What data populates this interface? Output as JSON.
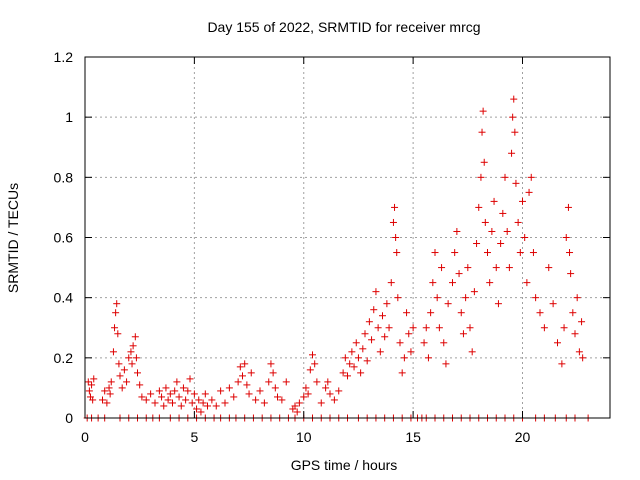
{
  "chart_data": {
    "type": "scatter",
    "title": "Day 155 of 2022, SRMTID for receiver mrcg",
    "xlabel": "GPS time / hours",
    "ylabel": "SRMTID / TECUs",
    "xlim": [
      0,
      24
    ],
    "ylim": [
      0,
      1.2
    ],
    "x_ticks": [
      0,
      5,
      10,
      15,
      20
    ],
    "x_tick_labels": [
      "0",
      "5",
      "10",
      "15",
      "20"
    ],
    "y_ticks": [
      0,
      0.2,
      0.4,
      0.6,
      0.8,
      1.0,
      1.2
    ],
    "y_tick_labels": [
      "0",
      "0.2",
      "0.4",
      "0.6",
      "0.8",
      "1",
      "1.2"
    ],
    "grid": true,
    "marker": "+",
    "marker_color": "#dd0000",
    "series": [
      {
        "name": "SRMTID",
        "points": [
          [
            0.15,
            0.12
          ],
          [
            0.2,
            0.09
          ],
          [
            0.25,
            0.07
          ],
          [
            0.3,
            0.11
          ],
          [
            0.35,
            0.06
          ],
          [
            0.4,
            0.13
          ],
          [
            0.8,
            0.06
          ],
          [
            0.9,
            0.09
          ],
          [
            1.0,
            0.05
          ],
          [
            1.1,
            0.1
          ],
          [
            1.15,
            0.08
          ],
          [
            1.2,
            0.12
          ],
          [
            1.3,
            0.22
          ],
          [
            1.35,
            0.3
          ],
          [
            1.4,
            0.35
          ],
          [
            1.45,
            0.38
          ],
          [
            1.5,
            0.28
          ],
          [
            1.55,
            0.18
          ],
          [
            1.6,
            0.14
          ],
          [
            1.7,
            0.1
          ],
          [
            1.8,
            0.16
          ],
          [
            1.9,
            0.12
          ],
          [
            2.0,
            0.2
          ],
          [
            2.1,
            0.22
          ],
          [
            2.15,
            0.18
          ],
          [
            2.2,
            0.24
          ],
          [
            2.3,
            0.27
          ],
          [
            2.35,
            0.2
          ],
          [
            2.4,
            0.15
          ],
          [
            2.5,
            0.11
          ],
          [
            2.6,
            0.07
          ],
          [
            2.8,
            0.06
          ],
          [
            3.0,
            0.08
          ],
          [
            3.2,
            0.05
          ],
          [
            3.4,
            0.09
          ],
          [
            3.5,
            0.07
          ],
          [
            3.6,
            0.04
          ],
          [
            3.7,
            0.1
          ],
          [
            3.8,
            0.06
          ],
          [
            3.9,
            0.08
          ],
          [
            4.0,
            0.05
          ],
          [
            4.1,
            0.09
          ],
          [
            4.2,
            0.12
          ],
          [
            4.3,
            0.07
          ],
          [
            4.4,
            0.04
          ],
          [
            4.5,
            0.1
          ],
          [
            4.6,
            0.06
          ],
          [
            4.7,
            0.09
          ],
          [
            4.8,
            0.13
          ],
          [
            4.9,
            0.05
          ],
          [
            5.0,
            0.08
          ],
          [
            5.1,
            0.03
          ],
          [
            5.2,
            0.06
          ],
          [
            5.3,
            0.02
          ],
          [
            5.4,
            0.05
          ],
          [
            5.5,
            0.08
          ],
          [
            5.6,
            0.04
          ],
          [
            5.8,
            0.06
          ],
          [
            6.0,
            0.04
          ],
          [
            6.2,
            0.09
          ],
          [
            6.4,
            0.05
          ],
          [
            6.6,
            0.1
          ],
          [
            6.8,
            0.07
          ],
          [
            7.0,
            0.12
          ],
          [
            7.1,
            0.17
          ],
          [
            7.2,
            0.14
          ],
          [
            7.3,
            0.18
          ],
          [
            7.4,
            0.11
          ],
          [
            7.5,
            0.08
          ],
          [
            7.6,
            0.15
          ],
          [
            7.8,
            0.06
          ],
          [
            8.0,
            0.09
          ],
          [
            8.2,
            0.05
          ],
          [
            8.4,
            0.12
          ],
          [
            8.5,
            0.18
          ],
          [
            8.6,
            0.15
          ],
          [
            8.7,
            0.1
          ],
          [
            8.8,
            0.07
          ],
          [
            9.0,
            0.06
          ],
          [
            9.2,
            0.12
          ],
          [
            9.5,
            0.03
          ],
          [
            9.6,
            0.04
          ],
          [
            9.7,
            0.02
          ],
          [
            9.8,
            0.05
          ],
          [
            10.0,
            0.07
          ],
          [
            10.1,
            0.1
          ],
          [
            10.2,
            0.08
          ],
          [
            10.3,
            0.16
          ],
          [
            10.4,
            0.21
          ],
          [
            10.5,
            0.18
          ],
          [
            10.6,
            0.12
          ],
          [
            10.8,
            0.05
          ],
          [
            11.0,
            0.1
          ],
          [
            11.1,
            0.12
          ],
          [
            11.2,
            0.08
          ],
          [
            11.4,
            0.06
          ],
          [
            11.6,
            0.09
          ],
          [
            11.8,
            0.15
          ],
          [
            11.9,
            0.2
          ],
          [
            12.0,
            0.14
          ],
          [
            12.1,
            0.18
          ],
          [
            12.2,
            0.22
          ],
          [
            12.3,
            0.17
          ],
          [
            12.4,
            0.25
          ],
          [
            12.5,
            0.2
          ],
          [
            12.6,
            0.15
          ],
          [
            12.7,
            0.23
          ],
          [
            12.8,
            0.28
          ],
          [
            12.9,
            0.19
          ],
          [
            13.0,
            0.32
          ],
          [
            13.1,
            0.26
          ],
          [
            13.2,
            0.36
          ],
          [
            13.3,
            0.42
          ],
          [
            13.4,
            0.3
          ],
          [
            13.5,
            0.22
          ],
          [
            13.6,
            0.34
          ],
          [
            13.7,
            0.27
          ],
          [
            13.8,
            0.38
          ],
          [
            13.9,
            0.3
          ],
          [
            14.0,
            0.45
          ],
          [
            14.1,
            0.65
          ],
          [
            14.15,
            0.7
          ],
          [
            14.2,
            0.6
          ],
          [
            14.25,
            0.55
          ],
          [
            14.3,
            0.4
          ],
          [
            14.4,
            0.25
          ],
          [
            14.5,
            0.15
          ],
          [
            14.6,
            0.2
          ],
          [
            14.7,
            0.35
          ],
          [
            14.8,
            0.28
          ],
          [
            14.9,
            0.22
          ],
          [
            15.0,
            0.3
          ],
          [
            15.5,
            0.25
          ],
          [
            15.6,
            0.3
          ],
          [
            15.7,
            0.2
          ],
          [
            15.8,
            0.35
          ],
          [
            15.9,
            0.45
          ],
          [
            16.0,
            0.55
          ],
          [
            16.1,
            0.4
          ],
          [
            16.2,
            0.3
          ],
          [
            16.3,
            0.5
          ],
          [
            16.4,
            0.25
          ],
          [
            16.5,
            0.18
          ],
          [
            16.6,
            0.38
          ],
          [
            16.8,
            0.45
          ],
          [
            16.9,
            0.55
          ],
          [
            17.0,
            0.62
          ],
          [
            17.1,
            0.48
          ],
          [
            17.2,
            0.35
          ],
          [
            17.3,
            0.28
          ],
          [
            17.4,
            0.4
          ],
          [
            17.5,
            0.5
          ],
          [
            17.6,
            0.3
          ],
          [
            17.7,
            0.22
          ],
          [
            17.8,
            0.42
          ],
          [
            17.9,
            0.58
          ],
          [
            18.0,
            0.7
          ],
          [
            18.1,
            0.8
          ],
          [
            18.15,
            0.95
          ],
          [
            18.2,
            1.02
          ],
          [
            18.25,
            0.85
          ],
          [
            18.3,
            0.65
          ],
          [
            18.4,
            0.55
          ],
          [
            18.5,
            0.45
          ],
          [
            18.6,
            0.62
          ],
          [
            18.7,
            0.72
          ],
          [
            18.8,
            0.5
          ],
          [
            18.9,
            0.38
          ],
          [
            19.0,
            0.58
          ],
          [
            19.1,
            0.68
          ],
          [
            19.2,
            0.8
          ],
          [
            19.3,
            0.62
          ],
          [
            19.4,
            0.5
          ],
          [
            19.5,
            0.88
          ],
          [
            19.55,
            1.0
          ],
          [
            19.6,
            1.06
          ],
          [
            19.65,
            0.95
          ],
          [
            19.7,
            0.78
          ],
          [
            19.8,
            0.65
          ],
          [
            19.9,
            0.55
          ],
          [
            20.0,
            0.72
          ],
          [
            20.1,
            0.6
          ],
          [
            20.2,
            0.45
          ],
          [
            20.3,
            0.75
          ],
          [
            20.4,
            0.8
          ],
          [
            20.5,
            0.55
          ],
          [
            20.6,
            0.4
          ],
          [
            20.8,
            0.35
          ],
          [
            21.0,
            0.3
          ],
          [
            21.2,
            0.5
          ],
          [
            21.4,
            0.38
          ],
          [
            21.6,
            0.25
          ],
          [
            21.8,
            0.18
          ],
          [
            21.9,
            0.3
          ],
          [
            22.0,
            0.6
          ],
          [
            22.1,
            0.7
          ],
          [
            22.15,
            0.55
          ],
          [
            22.2,
            0.48
          ],
          [
            22.3,
            0.35
          ],
          [
            22.4,
            0.28
          ],
          [
            22.5,
            0.4
          ],
          [
            22.6,
            0.22
          ],
          [
            22.7,
            0.32
          ],
          [
            22.75,
            0.2
          ]
        ],
        "zero_points_x": [
          0.1,
          0.3,
          0.6,
          0.9,
          1.6,
          2.0,
          2.4,
          2.8,
          3.1,
          3.4,
          3.9,
          4.3,
          4.7,
          5.1,
          5.5,
          5.9,
          6.2,
          6.6,
          6.9,
          7.3,
          7.7,
          8.1,
          8.5,
          8.9,
          9.3,
          9.6,
          10.0,
          10.4,
          10.8,
          11.2,
          11.6,
          12.0,
          12.5,
          12.9,
          13.3,
          13.7,
          14.1,
          14.5,
          14.9,
          15.2,
          15.4,
          15.6,
          16.0,
          16.4,
          16.8,
          17.2,
          17.6,
          18.0,
          18.4,
          18.8,
          19.2,
          19.6,
          20.0,
          20.6,
          21.0,
          21.5,
          22.0,
          22.4,
          23.0
        ]
      }
    ]
  }
}
